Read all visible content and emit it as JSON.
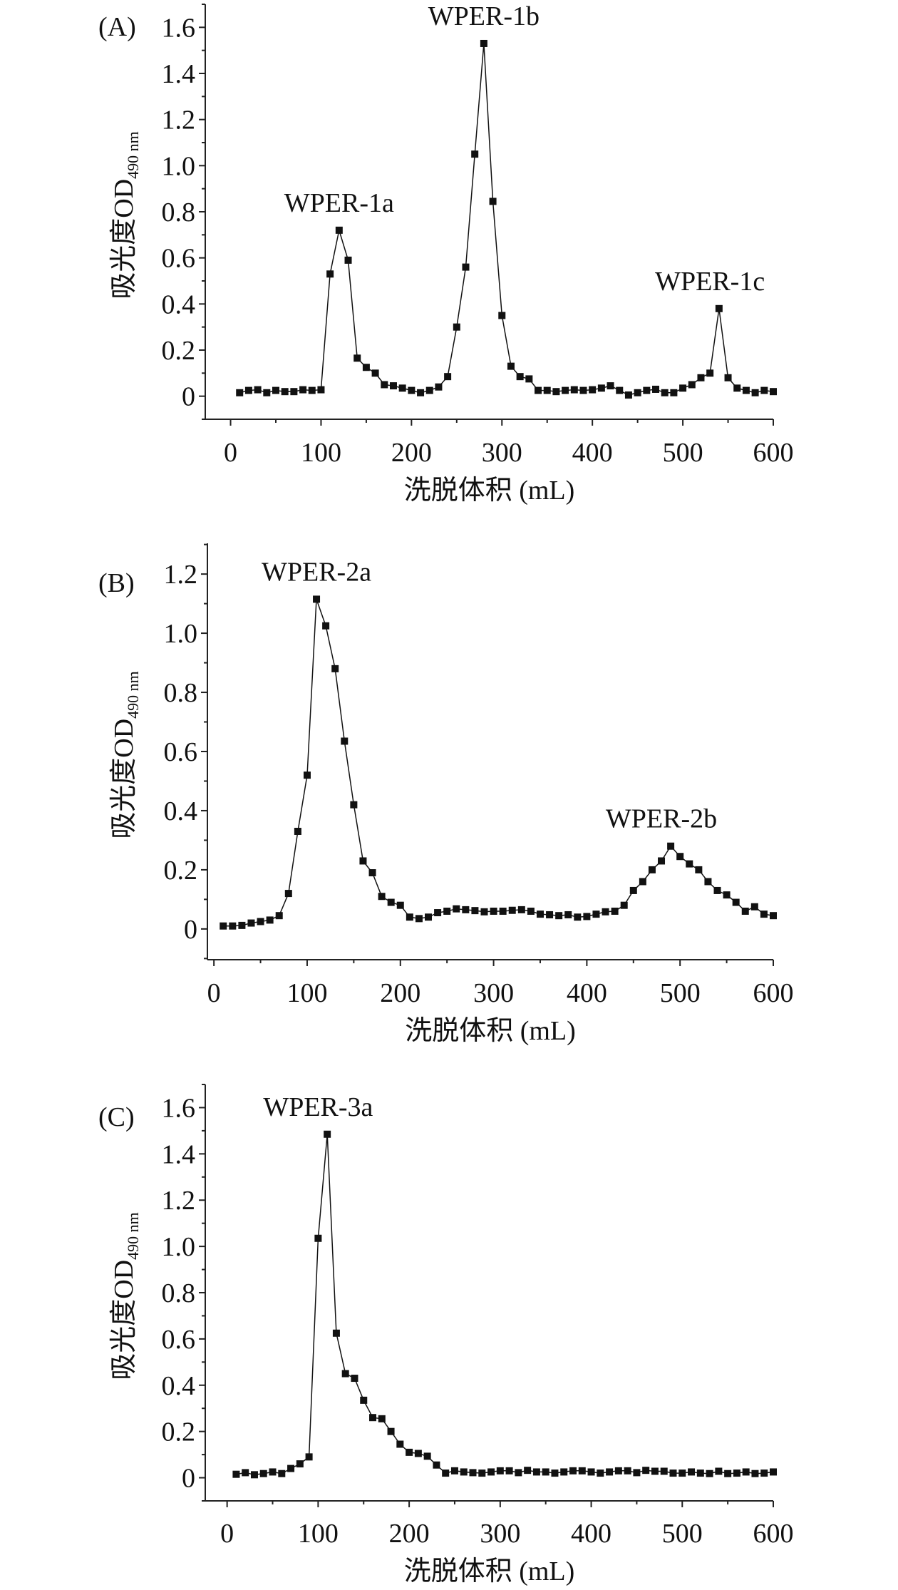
{
  "chart_data": [
    {
      "type": "line",
      "panel_label": "(A)",
      "xlabel": "洗脱体积 (mL)",
      "ylabel": "吸光度OD",
      "ylabel_sub": "490 nm",
      "xlim": [
        -28,
        600
      ],
      "ylim": [
        -0.1,
        1.7
      ],
      "xticks": [
        0,
        100,
        200,
        300,
        400,
        500,
        600
      ],
      "yticks": [
        0,
        0.2,
        0.4,
        0.6,
        0.8,
        1.0,
        1.2,
        1.4,
        1.6
      ],
      "ytick_labels": [
        "0",
        "0.2",
        "0.4",
        "0.6",
        "0.8",
        "1.0",
        "1.2",
        "1.4",
        "1.6"
      ],
      "marker": "square",
      "color": "#111111",
      "x": [
        10,
        20,
        30,
        40,
        50,
        60,
        70,
        80,
        90,
        100,
        110,
        120,
        130,
        140,
        150,
        160,
        170,
        180,
        190,
        200,
        210,
        220,
        230,
        240,
        250,
        260,
        270,
        280,
        290,
        300,
        310,
        320,
        330,
        340,
        350,
        360,
        370,
        380,
        390,
        400,
        410,
        420,
        430,
        440,
        450,
        460,
        470,
        480,
        490,
        500,
        510,
        520,
        530,
        540,
        550,
        560,
        570,
        580,
        590,
        600
      ],
      "y": [
        0.015,
        0.025,
        0.028,
        0.015,
        0.025,
        0.02,
        0.02,
        0.028,
        0.025,
        0.028,
        0.53,
        0.72,
        0.59,
        0.165,
        0.125,
        0.1,
        0.05,
        0.045,
        0.035,
        0.025,
        0.015,
        0.025,
        0.04,
        0.085,
        0.3,
        0.56,
        1.05,
        1.53,
        0.845,
        0.35,
        0.13,
        0.085,
        0.075,
        0.025,
        0.025,
        0.02,
        0.025,
        0.028,
        0.025,
        0.028,
        0.035,
        0.045,
        0.025,
        0.005,
        0.015,
        0.025,
        0.03,
        0.015,
        0.015,
        0.035,
        0.05,
        0.08,
        0.1,
        0.38,
        0.08,
        0.035,
        0.025,
        0.015,
        0.025,
        0.02
      ],
      "annotations": [
        {
          "text": "WPER-1a",
          "x": 120,
          "y": 0.72
        },
        {
          "text": "WPER-1b",
          "x": 280,
          "y": 1.53
        },
        {
          "text": "WPER-1c",
          "x": 530,
          "y": 0.38
        }
      ]
    },
    {
      "type": "line",
      "panel_label": "(B)",
      "xlabel": "洗脱体积 (mL)",
      "ylabel": "吸光度OD",
      "ylabel_sub": "490 nm",
      "xlim": [
        -7,
        600
      ],
      "ylim": [
        -0.104,
        1.304
      ],
      "xticks": [
        0,
        100,
        200,
        300,
        400,
        500,
        600
      ],
      "yticks": [
        0,
        0.2,
        0.4,
        0.6,
        0.8,
        1.0,
        1.2
      ],
      "ytick_labels": [
        "0",
        "0.2",
        "0.4",
        "0.6",
        "0.8",
        "1.0",
        "1.2"
      ],
      "marker": "square",
      "color": "#111111",
      "x": [
        10,
        20,
        30,
        40,
        50,
        60,
        70,
        80,
        90,
        100,
        110,
        120,
        130,
        140,
        150,
        160,
        170,
        180,
        190,
        200,
        210,
        220,
        230,
        240,
        250,
        260,
        270,
        280,
        290,
        300,
        310,
        320,
        330,
        340,
        350,
        360,
        370,
        380,
        390,
        400,
        410,
        420,
        430,
        440,
        450,
        460,
        470,
        480,
        490,
        500,
        510,
        520,
        530,
        540,
        550,
        560,
        570,
        580,
        590,
        600
      ],
      "y": [
        0.01,
        0.01,
        0.012,
        0.02,
        0.025,
        0.03,
        0.045,
        0.12,
        0.33,
        0.52,
        1.115,
        1.025,
        0.88,
        0.635,
        0.42,
        0.23,
        0.19,
        0.11,
        0.09,
        0.08,
        0.04,
        0.035,
        0.04,
        0.055,
        0.06,
        0.068,
        0.065,
        0.062,
        0.058,
        0.06,
        0.06,
        0.063,
        0.065,
        0.06,
        0.05,
        0.048,
        0.045,
        0.048,
        0.04,
        0.042,
        0.05,
        0.058,
        0.06,
        0.08,
        0.13,
        0.16,
        0.2,
        0.23,
        0.28,
        0.245,
        0.22,
        0.2,
        0.16,
        0.13,
        0.115,
        0.09,
        0.06,
        0.075,
        0.05,
        0.045
      ],
      "annotations": [
        {
          "text": "WPER-2a",
          "x": 110,
          "y": 1.115
        },
        {
          "text": "WPER-2b",
          "x": 480,
          "y": 0.28
        }
      ]
    },
    {
      "type": "line",
      "panel_label": "(C)",
      "xlabel": "洗脱体积 (mL)",
      "ylabel": "吸光度OD",
      "ylabel_sub": "490 nm",
      "xlim": [
        -24,
        600
      ],
      "ylim": [
        -0.1,
        1.7
      ],
      "xticks": [
        0,
        100,
        200,
        300,
        400,
        500,
        600
      ],
      "yticks": [
        0,
        0.2,
        0.4,
        0.6,
        0.8,
        1.0,
        1.2,
        1.4,
        1.6
      ],
      "ytick_labels": [
        "0",
        "0.2",
        "0.4",
        "0.6",
        "0.8",
        "1.0",
        "1.2",
        "1.4",
        "1.6"
      ],
      "marker": "square",
      "color": "#111111",
      "x": [
        10,
        20,
        30,
        40,
        50,
        60,
        70,
        80,
        90,
        100,
        110,
        120,
        130,
        140,
        150,
        160,
        170,
        180,
        190,
        200,
        210,
        220,
        230,
        240,
        250,
        260,
        270,
        280,
        290,
        300,
        310,
        320,
        330,
        340,
        350,
        360,
        370,
        380,
        390,
        400,
        410,
        420,
        430,
        440,
        450,
        460,
        470,
        480,
        490,
        500,
        510,
        520,
        530,
        540,
        550,
        560,
        570,
        580,
        590,
        600
      ],
      "y": [
        0.015,
        0.022,
        0.013,
        0.018,
        0.025,
        0.018,
        0.04,
        0.06,
        0.09,
        1.035,
        1.485,
        0.625,
        0.45,
        0.43,
        0.335,
        0.26,
        0.255,
        0.2,
        0.145,
        0.11,
        0.105,
        0.093,
        0.055,
        0.02,
        0.03,
        0.025,
        0.022,
        0.02,
        0.025,
        0.03,
        0.03,
        0.022,
        0.032,
        0.025,
        0.025,
        0.02,
        0.025,
        0.03,
        0.03,
        0.025,
        0.02,
        0.025,
        0.03,
        0.03,
        0.022,
        0.032,
        0.028,
        0.028,
        0.02,
        0.02,
        0.025,
        0.02,
        0.018,
        0.028,
        0.018,
        0.02,
        0.025,
        0.018,
        0.02,
        0.025
      ],
      "annotations": [
        {
          "text": "WPER-3a",
          "x": 100,
          "y": 1.485
        }
      ]
    }
  ]
}
